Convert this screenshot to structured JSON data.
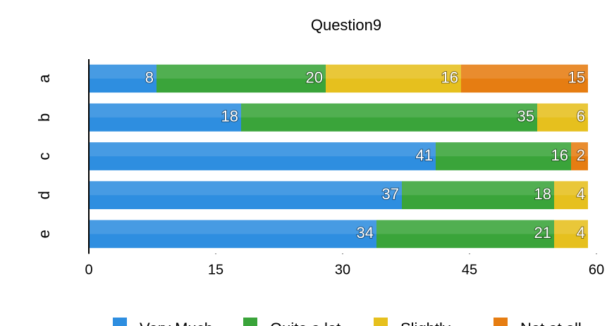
{
  "chart_data": {
    "type": "stacked-bar-horizontal",
    "title": "Question9",
    "categories": [
      "a",
      "b",
      "c",
      "d",
      "e"
    ],
    "series": [
      {
        "name": "Very Much",
        "color": "#2e8ee0",
        "values": [
          8,
          18,
          41,
          37,
          34
        ]
      },
      {
        "name": "Quite a lot",
        "color": "#3aa43a",
        "values": [
          20,
          35,
          16,
          18,
          21
        ]
      },
      {
        "name": "Slightly",
        "color": "#e6c01e",
        "values": [
          16,
          6,
          null,
          4,
          4
        ]
      },
      {
        "name": "Not at all",
        "color": "#e67d12",
        "values": [
          15,
          null,
          2,
          null,
          null
        ]
      }
    ],
    "xlim": [
      0,
      60
    ],
    "xticks": [
      0,
      15,
      30,
      45,
      60
    ],
    "grid": false,
    "legend": "bottom"
  }
}
